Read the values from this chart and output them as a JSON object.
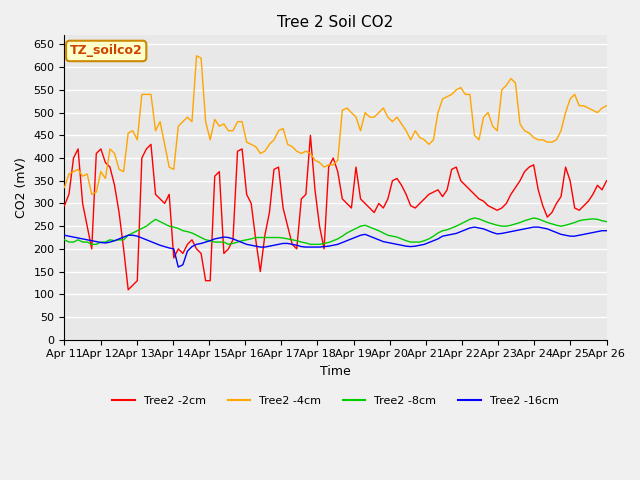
{
  "title": "Tree 2 Soil CO2",
  "xlabel": "Time",
  "ylabel": "CO2 (mV)",
  "ylim": [
    0,
    670
  ],
  "yticks": [
    0,
    50,
    100,
    150,
    200,
    250,
    300,
    350,
    400,
    450,
    500,
    550,
    600,
    650
  ],
  "xlabels": [
    "Apr 11",
    "Apr 12",
    "Apr 13",
    "Apr 14",
    "Apr 15",
    "Apr 16",
    "Apr 17",
    "Apr 18",
    "Apr 19",
    "Apr 20",
    "Apr 21",
    "Apr 22",
    "Apr 23",
    "Apr 24",
    "Apr 25",
    "Apr 26"
  ],
  "tz_label": "TZ_soilco2",
  "bg_color": "#e8e8e8",
  "grid_color": "#ffffff",
  "series": {
    "red": {
      "label": "Tree2 -2cm",
      "color": "#ff0000",
      "values": [
        295,
        320,
        400,
        420,
        300,
        250,
        200,
        410,
        420,
        390,
        380,
        340,
        280,
        200,
        110,
        120,
        130,
        400,
        420,
        430,
        320,
        310,
        300,
        320,
        180,
        200,
        190,
        210,
        220,
        200,
        190,
        130,
        130,
        360,
        370,
        190,
        200,
        220,
        415,
        420,
        320,
        300,
        220,
        150,
        230,
        280,
        375,
        380,
        290,
        250,
        210,
        200,
        310,
        320,
        450,
        330,
        250,
        200,
        380,
        400,
        370,
        310,
        300,
        290,
        380,
        310,
        300,
        290,
        280,
        300,
        290,
        310,
        350,
        355,
        340,
        320,
        295,
        290,
        300,
        310,
        320,
        325,
        330,
        315,
        330,
        375,
        380,
        350,
        340,
        330,
        320,
        310,
        305,
        295,
        290,
        285,
        290,
        300,
        320,
        335,
        350,
        370,
        380,
        385,
        330,
        295,
        270,
        280,
        300,
        315,
        380,
        350,
        290,
        285,
        295,
        305,
        320,
        340,
        330,
        350
      ]
    },
    "orange": {
      "label": "Tree2 -4cm",
      "color": "#ffa500",
      "values": [
        335,
        365,
        370,
        375,
        360,
        365,
        320,
        325,
        370,
        355,
        420,
        410,
        375,
        370,
        455,
        460,
        440,
        540,
        540,
        540,
        460,
        480,
        430,
        380,
        375,
        470,
        480,
        490,
        480,
        625,
        620,
        480,
        440,
        485,
        470,
        475,
        460,
        460,
        480,
        480,
        435,
        430,
        425,
        410,
        415,
        430,
        440,
        460,
        465,
        430,
        425,
        415,
        410,
        415,
        410,
        395,
        390,
        380,
        385,
        385,
        395,
        505,
        510,
        500,
        490,
        460,
        500,
        490,
        490,
        500,
        510,
        490,
        480,
        490,
        475,
        460,
        440,
        460,
        445,
        440,
        430,
        440,
        500,
        530,
        535,
        540,
        550,
        555,
        540,
        540,
        450,
        440,
        490,
        500,
        470,
        460,
        550,
        560,
        575,
        565,
        475,
        460,
        455,
        445,
        440,
        440,
        435,
        435,
        440,
        460,
        500,
        530,
        540,
        515,
        515,
        510,
        505,
        500,
        510,
        515
      ]
    },
    "green": {
      "label": "Tree2 -8cm",
      "color": "#00cc00",
      "values": [
        220,
        215,
        215,
        220,
        215,
        215,
        210,
        210,
        215,
        215,
        220,
        218,
        220,
        220,
        230,
        235,
        240,
        245,
        250,
        258,
        265,
        260,
        255,
        250,
        248,
        245,
        240,
        238,
        235,
        230,
        225,
        220,
        218,
        215,
        215,
        215,
        210,
        212,
        215,
        218,
        220,
        222,
        225,
        225,
        225,
        225,
        225,
        225,
        224,
        222,
        220,
        218,
        215,
        213,
        210,
        210,
        210,
        212,
        214,
        218,
        222,
        228,
        235,
        240,
        245,
        250,
        252,
        248,
        244,
        240,
        235,
        230,
        228,
        226,
        222,
        218,
        215,
        215,
        215,
        218,
        222,
        228,
        235,
        240,
        242,
        246,
        250,
        255,
        260,
        265,
        268,
        266,
        262,
        258,
        255,
        252,
        250,
        250,
        252,
        255,
        258,
        262,
        265,
        268,
        266,
        262,
        258,
        255,
        252,
        250,
        252,
        255,
        258,
        262,
        264,
        265,
        266,
        265,
        262,
        260
      ]
    },
    "blue": {
      "label": "Tree2 -16cm",
      "color": "#0000ff",
      "values": [
        230,
        228,
        226,
        224,
        222,
        220,
        218,
        216,
        214,
        213,
        215,
        218,
        222,
        226,
        230,
        230,
        228,
        224,
        220,
        216,
        212,
        208,
        205,
        202,
        200,
        160,
        165,
        195,
        205,
        210,
        212,
        215,
        218,
        222,
        224,
        226,
        225,
        222,
        218,
        214,
        210,
        208,
        206,
        204,
        204,
        206,
        208,
        210,
        212,
        212,
        210,
        208,
        205,
        204,
        204,
        204,
        204,
        205,
        206,
        208,
        210,
        214,
        218,
        222,
        226,
        230,
        232,
        228,
        224,
        220,
        216,
        214,
        212,
        210,
        208,
        206,
        205,
        206,
        208,
        210,
        214,
        218,
        222,
        228,
        230,
        232,
        234,
        238,
        242,
        246,
        248,
        246,
        244,
        240,
        236,
        233,
        234,
        236,
        238,
        240,
        242,
        244,
        246,
        248,
        248,
        246,
        244,
        240,
        236,
        232,
        230,
        228,
        228,
        230,
        232,
        234,
        236,
        238,
        240,
        240
      ]
    }
  }
}
